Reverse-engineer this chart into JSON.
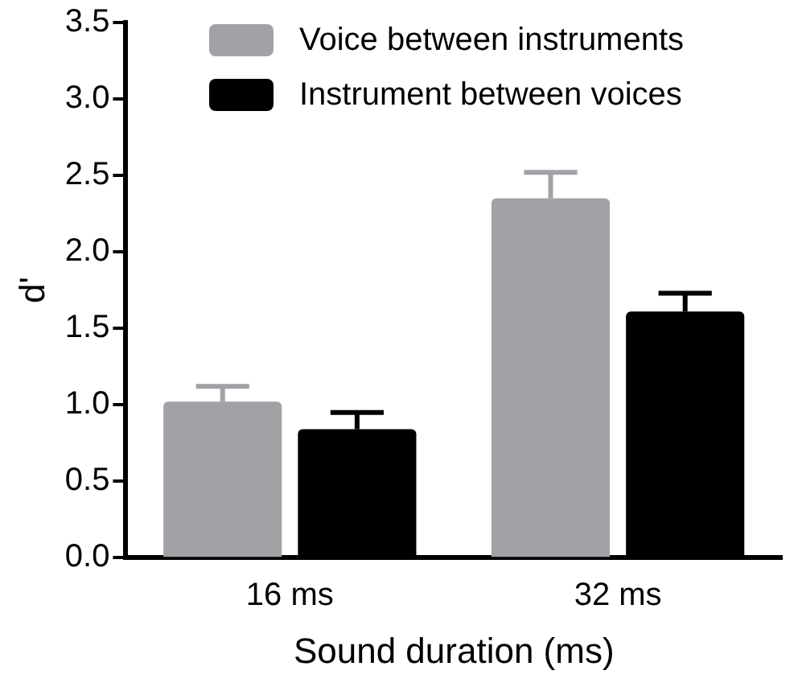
{
  "chart_data": {
    "type": "bar",
    "xlabel": "Sound duration (ms)",
    "ylabel": "d'",
    "categories": [
      "16 ms",
      "32 ms"
    ],
    "series": [
      {
        "name": "Voice between instruments",
        "color": "#a2a1a6",
        "values": [
          1.02,
          2.35
        ],
        "errors": [
          [
            1.02,
            1.12
          ],
          [
            2.35,
            2.52
          ]
        ]
      },
      {
        "name": "Instrument between voices",
        "color": "#000000",
        "values": [
          0.84,
          1.61
        ],
        "errors": [
          [
            0.84,
            0.95
          ],
          [
            1.61,
            1.73
          ]
        ]
      }
    ],
    "ylim": [
      0,
      3.5
    ],
    "yticks": [
      {
        "value": 0,
        "label": "0.0"
      },
      {
        "value": 0.5,
        "label": "0.5"
      },
      {
        "value": 1,
        "label": "1.0"
      },
      {
        "value": 1.5,
        "label": "1.5"
      },
      {
        "value": 2,
        "label": "2.0"
      },
      {
        "value": 2.5,
        "label": "2.5"
      },
      {
        "value": 3,
        "label": "3.0"
      },
      {
        "value": 3.5,
        "label": "3.5"
      }
    ],
    "grid": false,
    "legend": "top"
  }
}
